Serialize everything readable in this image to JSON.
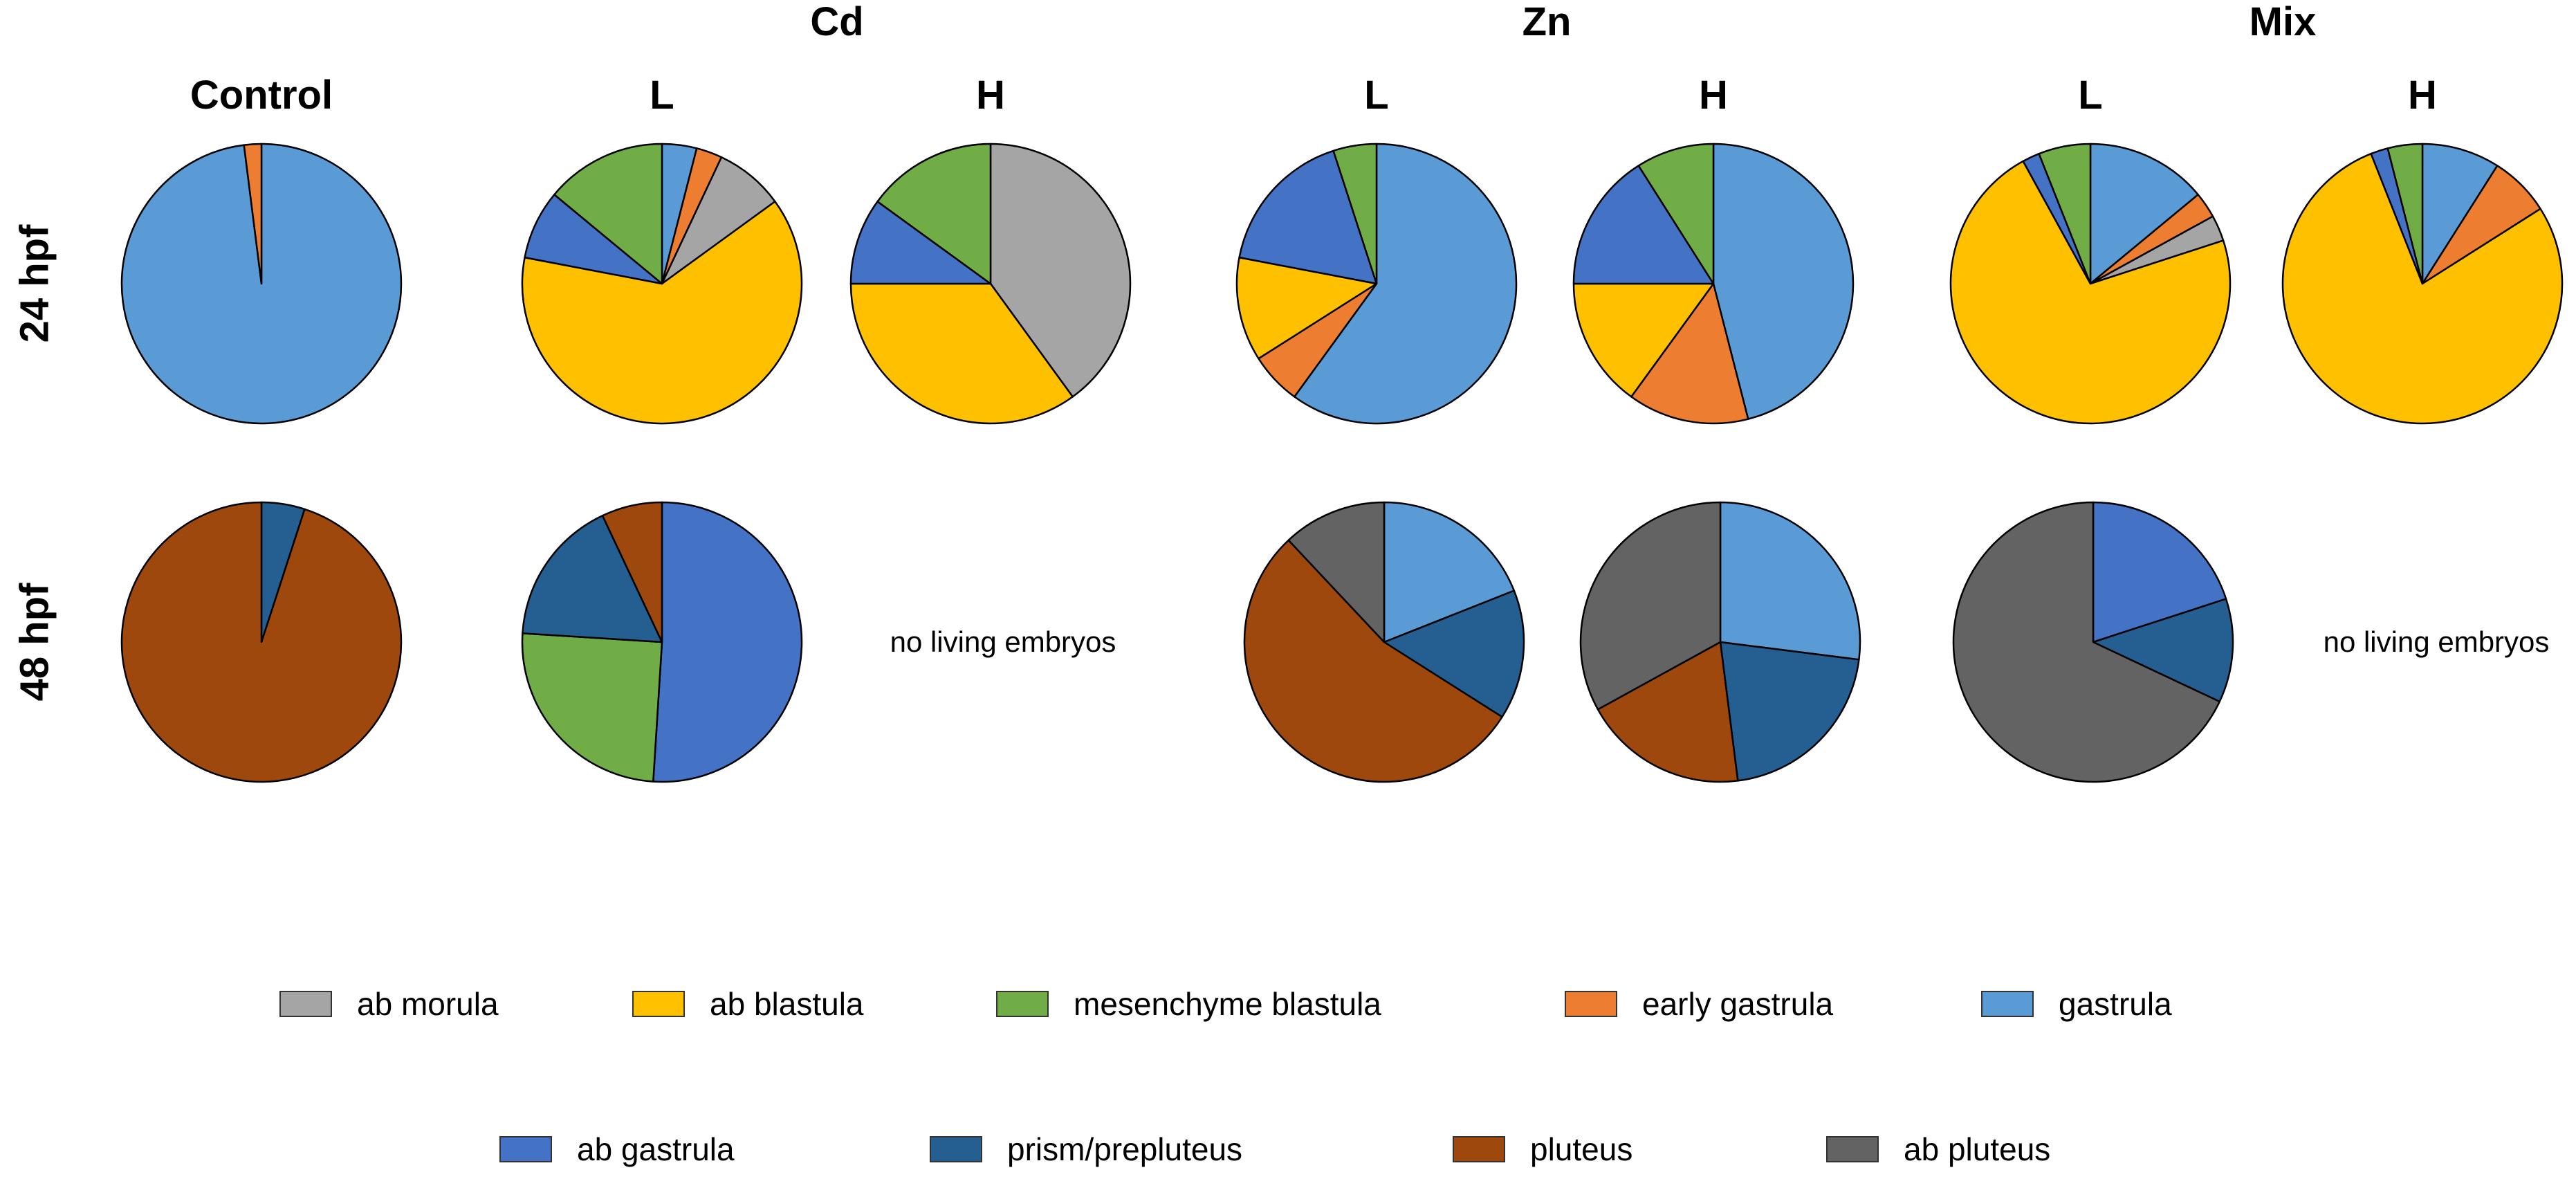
{
  "categories": [
    {
      "key": "ab_morula",
      "label": "ab morula",
      "color": "#A5A5A5"
    },
    {
      "key": "ab_blastula",
      "label": "ab blastula",
      "color": "#FFC000"
    },
    {
      "key": "mesenchyme_blastula",
      "label": "mesenchyme blastula",
      "color": "#70AD47"
    },
    {
      "key": "early_gastrula",
      "label": "early gastrula",
      "color": "#ED7D31"
    },
    {
      "key": "gastrula",
      "label": "gastrula",
      "color": "#5B9BD5"
    },
    {
      "key": "ab_gastrula",
      "label": "ab gastrula",
      "color": "#4472C4"
    },
    {
      "key": "prism_prepluteus",
      "label": "prism/prepluteus",
      "color": "#255E91"
    },
    {
      "key": "pluteus",
      "label": "pluteus",
      "color": "#9E480E"
    },
    {
      "key": "ab_pluteus",
      "label": "ab pluteus",
      "color": "#636363"
    }
  ],
  "headers": {
    "groups": {
      "cd": "Cd",
      "zn": "Zn",
      "mix": "Mix"
    },
    "columns": {
      "control": "Control",
      "cd_l": "L",
      "cd_h": "H",
      "zn_l": "L",
      "zn_h": "H",
      "mix_l": "L",
      "mix_h": "H"
    },
    "rows": {
      "h24": "24 hpf",
      "h48": "48 hpf"
    }
  },
  "notes": {
    "cd_h_48": "no living embryos",
    "mix_h_48": "no living embryos"
  },
  "chart_data": {
    "type": "pie",
    "title": "",
    "start": "12 o'clock, clockwise",
    "units": "percent of embryos",
    "pies": [
      {
        "id": "control-24",
        "group": "Control",
        "column": "Control",
        "row": "24 hpf",
        "slices": [
          {
            "category": "gastrula",
            "value": 98
          },
          {
            "category": "early gastrula",
            "value": 2
          }
        ]
      },
      {
        "id": "cd-l-24",
        "group": "Cd",
        "column": "L",
        "row": "24 hpf",
        "slices": [
          {
            "category": "gastrula",
            "value": 4
          },
          {
            "category": "early gastrula",
            "value": 3
          },
          {
            "category": "ab morula",
            "value": 8
          },
          {
            "category": "ab blastula",
            "value": 63
          },
          {
            "category": "ab gastrula",
            "value": 8
          },
          {
            "category": "mesenchyme blastula",
            "value": 14
          }
        ]
      },
      {
        "id": "cd-h-24",
        "group": "Cd",
        "column": "H",
        "row": "24 hpf",
        "slices": [
          {
            "category": "ab morula",
            "value": 40
          },
          {
            "category": "ab blastula",
            "value": 35
          },
          {
            "category": "ab gastrula",
            "value": 10
          },
          {
            "category": "mesenchyme blastula",
            "value": 15
          }
        ]
      },
      {
        "id": "zn-l-24",
        "group": "Zn",
        "column": "L",
        "row": "24 hpf",
        "slices": [
          {
            "category": "gastrula",
            "value": 60
          },
          {
            "category": "early gastrula",
            "value": 6
          },
          {
            "category": "ab blastula",
            "value": 12
          },
          {
            "category": "ab gastrula",
            "value": 17
          },
          {
            "category": "mesenchyme blastula",
            "value": 5
          }
        ]
      },
      {
        "id": "zn-h-24",
        "group": "Zn",
        "column": "H",
        "row": "24 hpf",
        "slices": [
          {
            "category": "gastrula",
            "value": 46
          },
          {
            "category": "early gastrula",
            "value": 14
          },
          {
            "category": "ab blastula",
            "value": 15
          },
          {
            "category": "ab gastrula",
            "value": 16
          },
          {
            "category": "mesenchyme blastula",
            "value": 9
          }
        ]
      },
      {
        "id": "mix-l-24",
        "group": "Mix",
        "column": "L",
        "row": "24 hpf",
        "slices": [
          {
            "category": "gastrula",
            "value": 14
          },
          {
            "category": "early gastrula",
            "value": 3
          },
          {
            "category": "ab morula",
            "value": 3
          },
          {
            "category": "ab blastula",
            "value": 72
          },
          {
            "category": "ab gastrula",
            "value": 2
          },
          {
            "category": "mesenchyme blastula",
            "value": 6
          }
        ]
      },
      {
        "id": "mix-h-24",
        "group": "Mix",
        "column": "H",
        "row": "24 hpf",
        "slices": [
          {
            "category": "gastrula",
            "value": 9
          },
          {
            "category": "early gastrula",
            "value": 7
          },
          {
            "category": "ab blastula",
            "value": 78
          },
          {
            "category": "ab gastrula",
            "value": 2
          },
          {
            "category": "mesenchyme blastula",
            "value": 4
          }
        ]
      },
      {
        "id": "control-48",
        "group": "Control",
        "column": "Control",
        "row": "48 hpf",
        "slices": [
          {
            "category": "prism/prepluteus",
            "value": 5
          },
          {
            "category": "pluteus",
            "value": 95
          }
        ]
      },
      {
        "id": "cd-l-48",
        "group": "Cd",
        "column": "L",
        "row": "48 hpf",
        "slices": [
          {
            "category": "ab gastrula",
            "value": 51
          },
          {
            "category": "mesenchyme blastula",
            "value": 25
          },
          {
            "category": "prism/prepluteus",
            "value": 17
          },
          {
            "category": "pluteus",
            "value": 7
          }
        ]
      },
      {
        "id": "zn-l-48",
        "group": "Zn",
        "column": "L",
        "row": "48 hpf",
        "slices": [
          {
            "category": "gastrula",
            "value": 19
          },
          {
            "category": "prism/prepluteus",
            "value": 15
          },
          {
            "category": "pluteus",
            "value": 54
          },
          {
            "category": "ab pluteus",
            "value": 12
          }
        ]
      },
      {
        "id": "zn-h-48",
        "group": "Zn",
        "column": "H",
        "row": "48 hpf",
        "slices": [
          {
            "category": "gastrula",
            "value": 27
          },
          {
            "category": "prism/prepluteus",
            "value": 21
          },
          {
            "category": "pluteus",
            "value": 19
          },
          {
            "category": "ab pluteus",
            "value": 33
          }
        ]
      },
      {
        "id": "mix-l-48",
        "group": "Mix",
        "column": "L",
        "row": "48 hpf",
        "slices": [
          {
            "category": "ab gastrula",
            "value": 20
          },
          {
            "category": "prism/prepluteus",
            "value": 12
          },
          {
            "category": "ab pluteus",
            "value": 68
          }
        ]
      }
    ]
  }
}
